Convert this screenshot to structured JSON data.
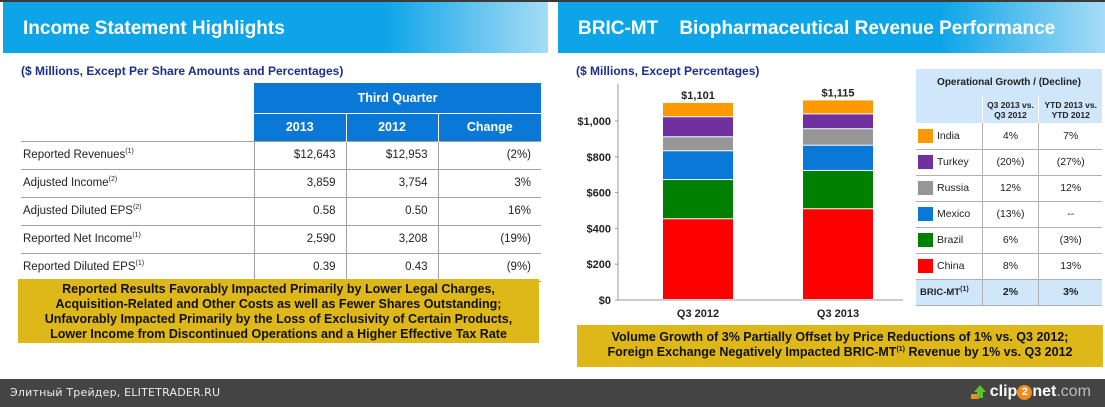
{
  "left_slide": {
    "title": "Income Statement Highlights",
    "subtitle": "($ Millions, Except Per Share Amounts and Percentages)",
    "table": {
      "group_header": "Third Quarter",
      "columns": [
        "2013",
        "2012",
        "Change"
      ],
      "rows": [
        {
          "label": "Reported Revenues",
          "footnote": "(1)",
          "values": [
            "$12,643",
            "$12,953",
            "(2%)"
          ]
        },
        {
          "label": "Adjusted Income",
          "footnote": "(2)",
          "values": [
            "3,859",
            "3,754",
            "3%"
          ]
        },
        {
          "label": "Adjusted Diluted EPS",
          "footnote": "(2)",
          "values": [
            "0.58",
            "0.50",
            "16%"
          ]
        },
        {
          "label": "Reported Net Income",
          "footnote": "(1)",
          "values": [
            "2,590",
            "3,208",
            "(19%)"
          ]
        },
        {
          "label": "Reported Diluted EPS",
          "footnote": "(1)",
          "values": [
            "0.39",
            "0.43",
            "(9%)"
          ]
        }
      ]
    },
    "note_lines": [
      "Reported Results Favorably Impacted Primarily by Lower Legal Charges,",
      "Acquisition-Related and Other Costs as well as Fewer Shares Outstanding;",
      "Unfavorably Impacted Primarily by the Loss of Exclusivity of Certain Products,",
      "Lower Income from Discontinued Operations and a Higher Effective Tax Rate"
    ]
  },
  "right_slide": {
    "title": "BRIC-MT    Biopharmaceutical Revenue Performance",
    "subtitle": "($ Millions, Except Percentages)",
    "growth_table": {
      "title": "Operational Growth / (Decline)",
      "col1": [
        "Q3 2013 vs.",
        "Q3 2012"
      ],
      "col2": [
        "YTD 2013 vs.",
        "YTD 2012"
      ],
      "rows": [
        {
          "label": "India",
          "color": "#ff9900",
          "q3": "4%",
          "ytd": "7%"
        },
        {
          "label": "Turkey",
          "color": "#7030a0",
          "q3": "(20%)",
          "ytd": "(27%)"
        },
        {
          "label": "Russia",
          "color": "#969696",
          "q3": "12%",
          "ytd": "12%"
        },
        {
          "label": "Mexico",
          "color": "#0a78d7",
          "q3": "(13%)",
          "ytd": "--"
        },
        {
          "label": "Brazil",
          "color": "#008000",
          "q3": "6%",
          "ytd": "(3%)"
        },
        {
          "label": "China",
          "color": "#ff0000",
          "q3": "8%",
          "ytd": "13%"
        }
      ],
      "total": {
        "label": "BRIC-MT",
        "footnote": "(1)",
        "q3": "2%",
        "ytd": "3%"
      }
    },
    "note_line1": "Volume Growth of 3% Partially Offset by Price Reductions of 1% vs. Q3 2012;",
    "note_line2_pre": "Foreign Exchange Negatively Impacted BRIC-MT",
    "note_line2_sup": "(1)",
    "note_line2_post": " Revenue by 1% vs. Q3 2012"
  },
  "chart_data": {
    "type": "bar",
    "stacked": true,
    "categories": [
      "Q3 2012",
      "Q3 2013"
    ],
    "series": [
      {
        "name": "China",
        "color": "#ff0000",
        "values": [
          451,
          507
        ]
      },
      {
        "name": "Brazil",
        "color": "#008000",
        "values": [
          219,
          214
        ]
      },
      {
        "name": "Mexico",
        "color": "#0a78d7",
        "values": [
          161,
          141
        ]
      },
      {
        "name": "Russia",
        "color": "#969696",
        "values": [
          78,
          92
        ]
      },
      {
        "name": "Turkey",
        "color": "#7030a0",
        "values": [
          112,
          83
        ]
      },
      {
        "name": "India",
        "color": "#ff9900",
        "values": [
          80,
          78
        ]
      }
    ],
    "totals": [
      1101,
      1115
    ],
    "total_labels": [
      "$1,101",
      "$1,115"
    ],
    "yticks": [
      0,
      200,
      400,
      600,
      800,
      1000
    ],
    "ytick_labels": [
      "$0",
      "$200",
      "$400",
      "$600",
      "$800",
      "$1,000"
    ],
    "ylim": [
      0,
      1150
    ],
    "title": "",
    "xlabel": "",
    "ylabel": "",
    "grid": false,
    "legend": "right (table)"
  },
  "footer": {
    "watermark": "Элитный Трейдер, ELITETRADER.RU",
    "logo_pre": "clip",
    "logo_two": "2",
    "logo_post": "net",
    "logo_domain": ".com"
  }
}
